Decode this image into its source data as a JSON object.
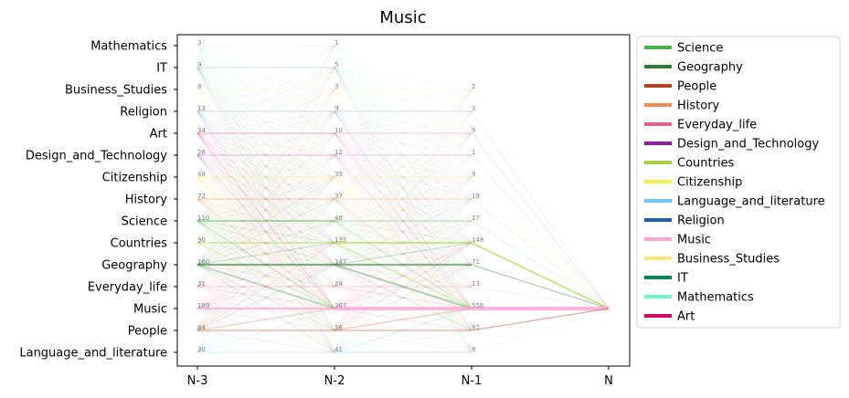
{
  "chart_data": {
    "type": "line",
    "title": "Music",
    "x": [
      "N-3",
      "N-2",
      "N-1",
      "N"
    ],
    "categories": [
      "Mathematics",
      "IT",
      "Business_Studies",
      "Religion",
      "Art",
      "Design_and_Technology",
      "Citizenship",
      "History",
      "Science",
      "Countries",
      "Geography",
      "Everyday_life",
      "Music",
      "People",
      "Language_and_literature"
    ],
    "counts": {
      "N-3": {
        "Mathematics": "3",
        "IT": "9",
        "Business_Studies": "8",
        "Religion": "13",
        "Art": "34",
        "Design_and_Technology": "26",
        "Citizenship": "48",
        "History": "72",
        "Science": "110",
        "Countries": "90",
        "Geography": "160",
        "Everyday_life": "31",
        "Music": "189",
        "People": "64",
        "Language_and_literature": "30"
      },
      "N-2": {
        "Mathematics": "1",
        "IT": "5",
        "Business_Studies": "3",
        "Religion": "9",
        "Art": "10",
        "Design_and_Technology": "12",
        "Citizenship": "35",
        "History": "37",
        "Science": "46",
        "Countries": "135",
        "Geography": "147",
        "Everyday_life": "24",
        "Music": "367",
        "People": "56",
        "Language_and_literature": "41"
      },
      "N-1": {
        "Business_Studies": "2",
        "Religion": "3",
        "Art": "9",
        "Design_and_Technology": "1",
        "Citizenship": "9",
        "History": "19",
        "Science": "17",
        "Countries": "148",
        "Geography": "71",
        "Everyday_life": "13",
        "Music": "556",
        "People": "82",
        "Language_and_literature": "8"
      }
    },
    "target": {
      "x": "N",
      "category": "Music"
    },
    "legend": {
      "placement": "outside-right",
      "items": [
        {
          "name": "Science",
          "color": "#4caf50"
        },
        {
          "name": "Geography",
          "color": "#2e7d32"
        },
        {
          "name": "People",
          "color": "#b5451b"
        },
        {
          "name": "History",
          "color": "#ff8a50"
        },
        {
          "name": "Everyday_life",
          "color": "#e0608e"
        },
        {
          "name": "Design_and_Technology",
          "color": "#8e1f99"
        },
        {
          "name": "Countries",
          "color": "#a8d045"
        },
        {
          "name": "Citizenship",
          "color": "#f6ec4a"
        },
        {
          "name": "Language_and_literature",
          "color": "#6ec6f5"
        },
        {
          "name": "Religion",
          "color": "#1f5fa8"
        },
        {
          "name": "Music",
          "color": "#ffa6d4"
        },
        {
          "name": "Business_Studies",
          "color": "#ffe870"
        },
        {
          "name": "IT",
          "color": "#00875a"
        },
        {
          "name": "Mathematics",
          "color": "#6ff5cf"
        },
        {
          "name": "Art",
          "color": "#d6085d"
        }
      ]
    },
    "grid": false
  }
}
